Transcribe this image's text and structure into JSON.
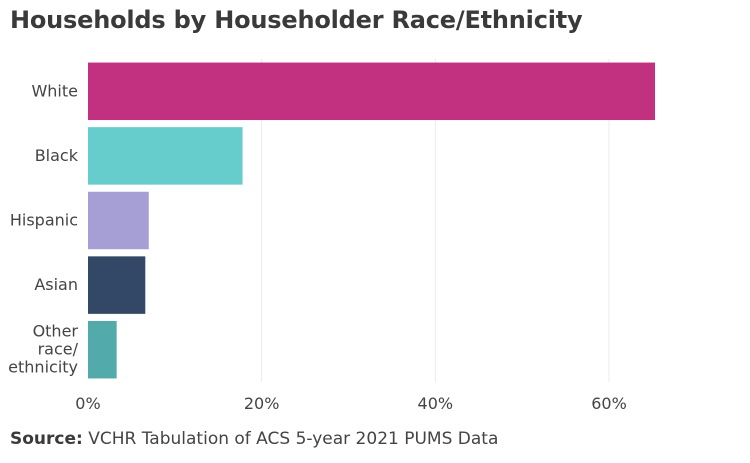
{
  "chart_data": {
    "type": "bar",
    "orientation": "horizontal",
    "title": "Households by Householder Race/Ethnicity",
    "categories": [
      [
        "White"
      ],
      [
        "Black"
      ],
      [
        "Hispanic"
      ],
      [
        "Asian"
      ],
      [
        "Other",
        "race/",
        "ethnicity"
      ]
    ],
    "values": [
      65.3,
      17.8,
      7.0,
      6.6,
      3.3
    ],
    "colors": [
      "#c2317f",
      "#66cccc",
      "#a59fd6",
      "#334766",
      "#52aaaa"
    ],
    "xlim": [
      0,
      72
    ],
    "xticks": [
      0,
      20,
      40,
      60
    ],
    "xtick_labels": [
      "0%",
      "20%",
      "40%",
      "60%"
    ],
    "grid": "vertical",
    "legend": "none"
  },
  "source": {
    "label": "Source:",
    "text": "VCHR Tabulation of ACS 5-year 2021 PUMS Data"
  }
}
